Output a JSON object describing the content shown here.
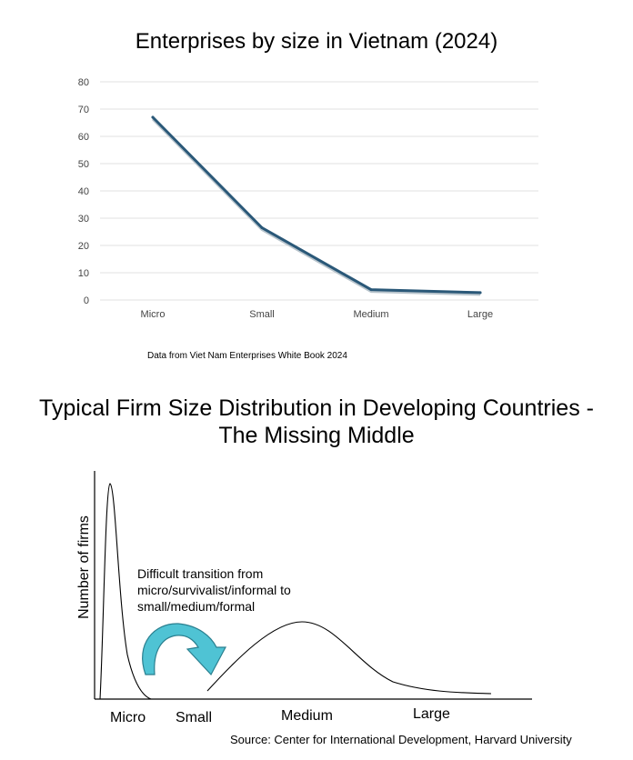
{
  "chart_data": [
    {
      "type": "line",
      "title": "Enterprises by size in Vietnam (2024)",
      "categories": [
        "Micro",
        "Small",
        "Medium",
        "Large"
      ],
      "values": [
        67,
        26.5,
        3.8,
        2.7
      ],
      "yticks": [
        0,
        10,
        20,
        30,
        40,
        50,
        60,
        70,
        80
      ],
      "ylim": [
        0,
        80
      ],
      "grid": true,
      "line_color": "#2a5878",
      "note": "Data from Viet Nam Enterprises White Book 2024"
    },
    {
      "type": "line",
      "title_line1": "Typical Firm Size Distribution in Developing Countries -",
      "title_line2": "The Missing Middle",
      "ylabel": "Number of firms",
      "categories": [
        "Micro",
        "Small",
        "Medium",
        "Large"
      ],
      "annotation": [
        "Difficult transition from",
        "micro/survivalist/informal to",
        "small/medium/formal"
      ],
      "arrow_color": "#4fc3d4",
      "source": "Source: Center for International Development, Harvard University"
    }
  ]
}
